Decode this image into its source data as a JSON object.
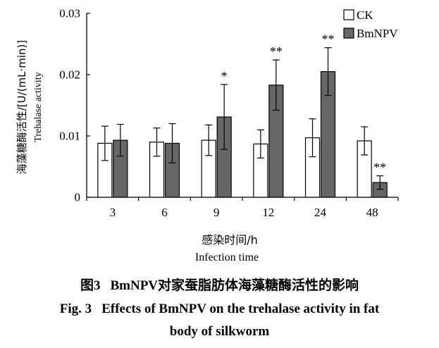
{
  "chart_data": {
    "type": "bar",
    "categories": [
      "3",
      "6",
      "9",
      "12",
      "24",
      "48"
    ],
    "series": [
      {
        "name": "CK",
        "color": "#ffffff",
        "values": [
          0.0088,
          0.009,
          0.0093,
          0.0087,
          0.0097,
          0.0092
        ],
        "errors": [
          0.0028,
          0.0023,
          0.0025,
          0.0023,
          0.0031,
          0.0023
        ],
        "significance": [
          "",
          "",
          "",
          "",
          "",
          ""
        ]
      },
      {
        "name": "BmNPV",
        "color": "#666666",
        "values": [
          0.0093,
          0.0088,
          0.0131,
          0.0183,
          0.0205,
          0.0024
        ],
        "errors": [
          0.0026,
          0.0032,
          0.0053,
          0.0041,
          0.0039,
          0.0011
        ],
        "significance": [
          "",
          "",
          "*",
          "**",
          "**",
          "**"
        ]
      }
    ],
    "ylim": [
      0,
      0.03
    ],
    "yticks": [
      "0",
      "0.01",
      "0.02",
      "0.03"
    ],
    "ylabel_cn": "海藻糖酶活性/[U/(mL·min)]",
    "ylabel_en": "Trehalase activity",
    "xlabel_cn": "感染时间/h",
    "xlabel_en": "Infection time",
    "legend_position": "top-right",
    "grid": false
  },
  "caption": {
    "cn_label": "图3",
    "cn_text": "BmNPV对家蚕脂肪体海藻糖酶活性的影响",
    "en_label": "Fig. 3",
    "en_text_line1": "Effects of BmNPV on the trehalase activity in fat",
    "en_text_line2": "body of silkworm"
  }
}
